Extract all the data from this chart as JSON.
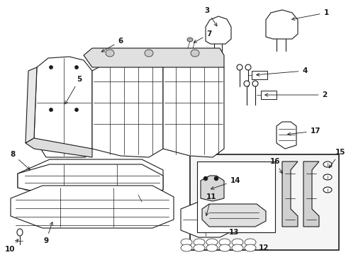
{
  "bg_color": "#ffffff",
  "lc": "#1a1a1a",
  "fig_width": 4.89,
  "fig_height": 3.6,
  "dpi": 100,
  "label_fs": 7.5,
  "arrow_lw": 0.6,
  "main_lw": 0.8,
  "thin_lw": 0.5
}
